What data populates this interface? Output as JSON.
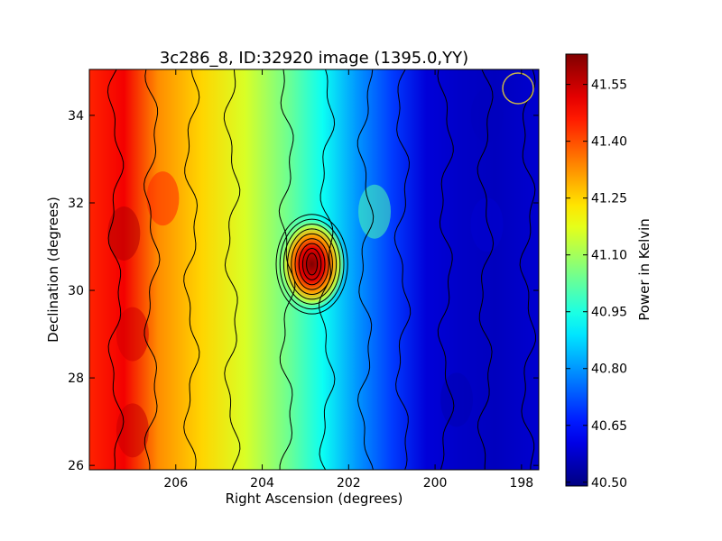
{
  "chart_data": {
    "type": "heatmap",
    "title": "3c286_8, ID:32920 image (1395.0,YY)",
    "xlabel": "Right Ascension (degrees)",
    "ylabel": "Declination (degrees)",
    "xlim": [
      208.0,
      197.6
    ],
    "ylim": [
      25.9,
      35.05
    ],
    "x_ticks": [
      206,
      204,
      202,
      200,
      198
    ],
    "y_ticks": [
      26,
      28,
      30,
      32,
      34
    ],
    "colorbar": {
      "label": "Power in Kelvin",
      "range": [
        40.49,
        41.63
      ],
      "ticks": [
        "41.55",
        "41.40",
        "41.25",
        "41.10",
        "40.95",
        "40.80",
        "40.65",
        "40.50"
      ],
      "colormap": "jet"
    },
    "gradient_profile": {
      "ra": [
        208.0,
        207.2,
        206.4,
        205.4,
        204.4,
        203.4,
        202.6,
        201.8,
        201.0,
        200.2,
        199.4,
        198.6,
        197.6
      ],
      "power": [
        41.45,
        41.5,
        41.33,
        41.25,
        41.16,
        41.04,
        40.93,
        40.8,
        40.7,
        40.59,
        40.57,
        40.56,
        40.58
      ]
    },
    "source": {
      "ra": 202.85,
      "dec": 30.6,
      "peak_power": 41.62
    },
    "beam_marker": {
      "ra": 197.9,
      "dec": 34.65
    },
    "contours": "on"
  }
}
